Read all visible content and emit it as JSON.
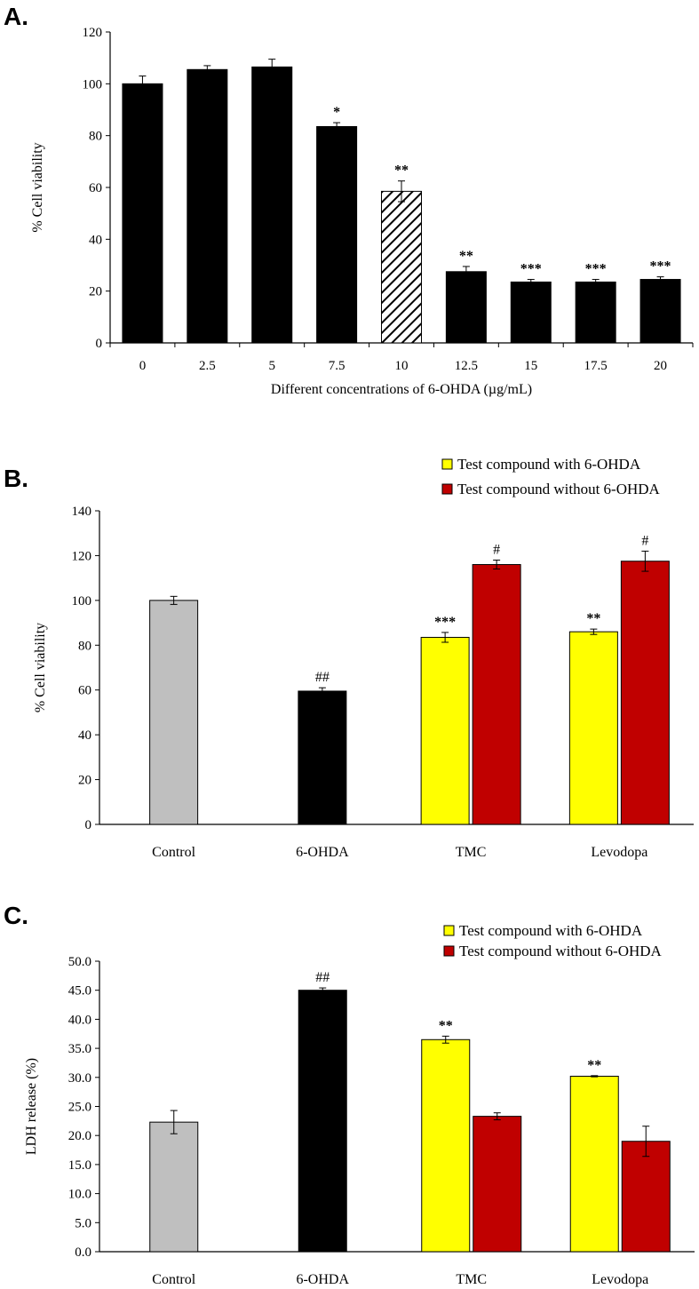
{
  "figure": {
    "panels": [
      "A.",
      "B.",
      "C."
    ]
  },
  "chart_data": [
    {
      "panel": "A.",
      "type": "bar",
      "title": "",
      "xlabel": "Different  concentrations  of 6-OHDA (µg/mL)",
      "ylabel": "% Cell  viability",
      "ylim": [
        0,
        120
      ],
      "yticks": [
        "0",
        "20",
        "40",
        "60",
        "80",
        "100",
        "120"
      ],
      "categories": [
        "0",
        "2.5",
        "5",
        "7.5",
        "10",
        "12.5",
        "15",
        "17.5",
        "20"
      ],
      "values": [
        100,
        105.5,
        106.5,
        83.5,
        58.5,
        27.5,
        23.5,
        23.5,
        24.5
      ],
      "errors": [
        3,
        1.5,
        3,
        1.5,
        4,
        2,
        1,
        1,
        1
      ],
      "annotations": [
        "",
        "",
        "",
        "*",
        "**",
        "**",
        "***",
        "***",
        "***"
      ],
      "fills": [
        "#000000",
        "#000000",
        "#000000",
        "#000000",
        "hatch",
        "#000000",
        "#000000",
        "#000000",
        "#000000"
      ]
    },
    {
      "panel": "B.",
      "type": "bar",
      "title": "",
      "xlabel": "",
      "ylabel": "% Cell  viability",
      "ylim": [
        0,
        140
      ],
      "yticks": [
        "0",
        "20",
        "40",
        "60",
        "80",
        "100",
        "120",
        "140"
      ],
      "categories": [
        "Control",
        "6-OHDA",
        "TMC",
        "Levodopa"
      ],
      "legend": [
        {
          "label": "Test compound with 6-OHDA",
          "color": "#ffff00"
        },
        {
          "label": "Test compound without 6-OHDA",
          "color": "#c00000"
        }
      ],
      "bars": [
        {
          "category": 0,
          "value": 100,
          "error": 1.8,
          "color": "#bfbfbf",
          "annotation": ""
        },
        {
          "category": 1,
          "value": 59.5,
          "error": 1.5,
          "color": "#000000",
          "annotation": "##"
        },
        {
          "category": 2,
          "value": 83.5,
          "error": 2.2,
          "color": "#ffff00",
          "annotation": "***"
        },
        {
          "category": 2,
          "value": 116,
          "error": 2,
          "color": "#c00000",
          "annotation": "#"
        },
        {
          "category": 3,
          "value": 86,
          "error": 1.2,
          "color": "#ffff00",
          "annotation": "**"
        },
        {
          "category": 3,
          "value": 117.5,
          "error": 4.5,
          "color": "#c00000",
          "annotation": "#"
        }
      ]
    },
    {
      "panel": "C.",
      "type": "bar",
      "title": "",
      "xlabel": "",
      "ylabel": "LDH release (%)",
      "ylim": [
        0,
        50
      ],
      "yticks": [
        "0.0",
        "5.0",
        "10.0",
        "15.0",
        "20.0",
        "25.0",
        "30.0",
        "35.0",
        "40.0",
        "45.0",
        "50.0"
      ],
      "categories": [
        "Control",
        "6-OHDA",
        "TMC",
        "Levodopa"
      ],
      "legend": [
        {
          "label": "Test compound with 6-OHDA",
          "color": "#ffff00"
        },
        {
          "label": "Test compound without 6-OHDA",
          "color": "#c00000"
        }
      ],
      "bars": [
        {
          "category": 0,
          "value": 22.3,
          "error": 2,
          "color": "#bfbfbf",
          "annotation": ""
        },
        {
          "category": 1,
          "value": 45,
          "error": 0.4,
          "color": "#000000",
          "annotation": "##"
        },
        {
          "category": 2,
          "value": 36.5,
          "error": 0.6,
          "color": "#ffff00",
          "annotation": "**"
        },
        {
          "category": 2,
          "value": 23.3,
          "error": 0.6,
          "color": "#c00000",
          "annotation": ""
        },
        {
          "category": 3,
          "value": 30.2,
          "error": 0.1,
          "color": "#ffff00",
          "annotation": "**"
        },
        {
          "category": 3,
          "value": 19,
          "error": 2.6,
          "color": "#c00000",
          "annotation": ""
        }
      ]
    }
  ]
}
